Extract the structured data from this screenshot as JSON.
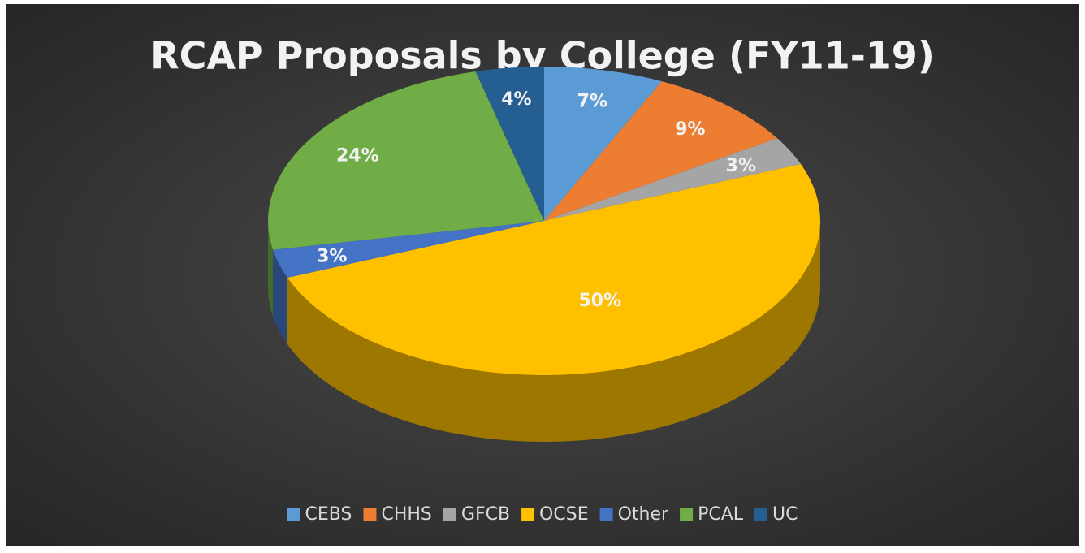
{
  "chart_data": {
    "type": "pie",
    "title": "RCAP Proposals by College (FY11-19)",
    "categories": [
      "CEBS",
      "CHHS",
      "GFCB",
      "OCSE",
      "Other",
      "PCAL",
      "UC"
    ],
    "values": [
      7,
      9,
      3,
      50,
      3,
      24,
      4
    ],
    "value_labels": [
      "7%",
      "9%",
      "3%",
      "50%",
      "3%",
      "24%",
      "4%"
    ],
    "colors": [
      "#5b9bd5",
      "#ed7d31",
      "#a5a5a5",
      "#ffc000",
      "#4472c4",
      "#70ad47",
      "#255e91"
    ],
    "legend": "bottom"
  }
}
